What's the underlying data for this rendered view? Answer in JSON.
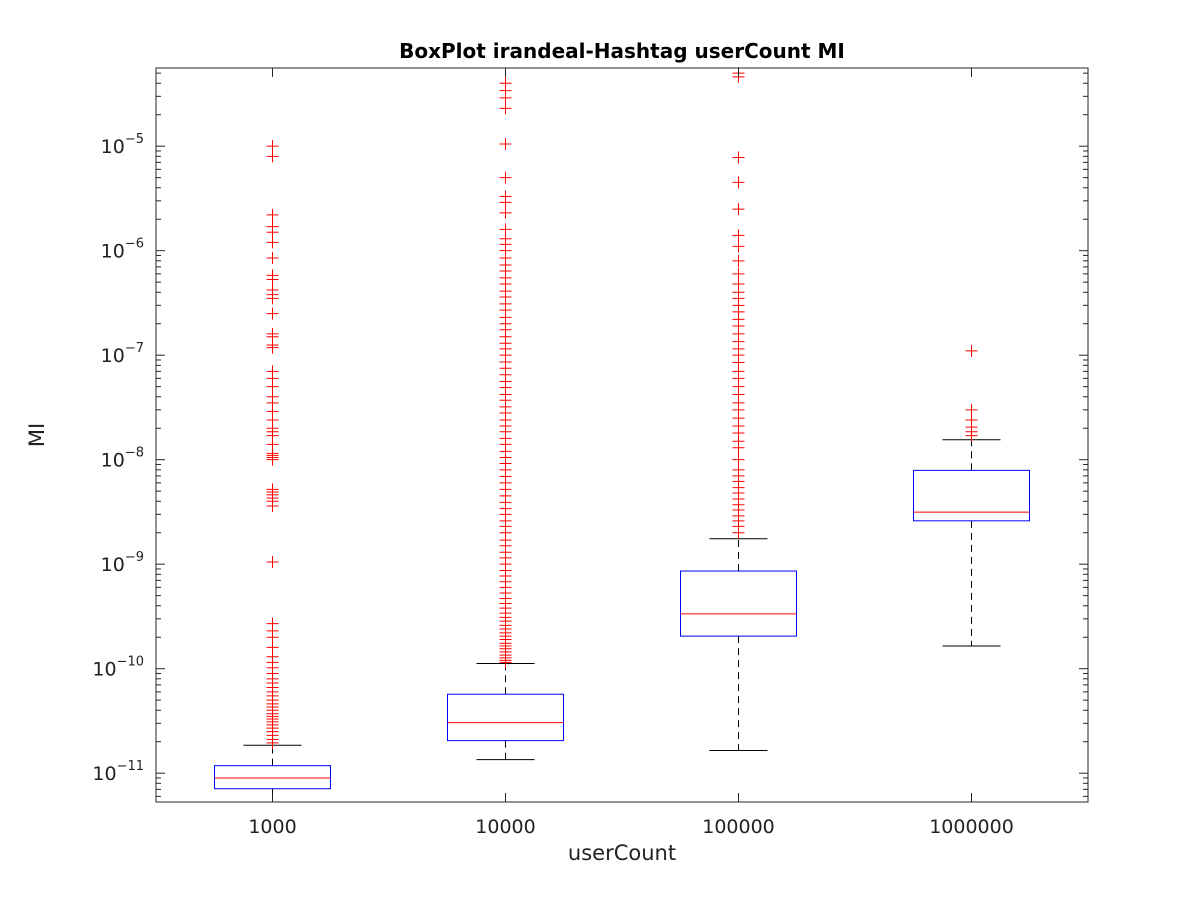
{
  "chart_data": {
    "type": "boxplot",
    "title": "BoxPlot irandeal-Hashtag userCount MI",
    "xlabel": "userCount",
    "ylabel": "MI",
    "yscale": "log",
    "ylim": [
      5.3e-12,
      5.6e-05
    ],
    "yticks": [
      {
        "value": 1e-11,
        "base": "10",
        "exp": "−11"
      },
      {
        "value": 1e-10,
        "base": "10",
        "exp": "−10"
      },
      {
        "value": 1e-09,
        "base": "10",
        "exp": "−9"
      },
      {
        "value": 1e-08,
        "base": "10",
        "exp": "−8"
      },
      {
        "value": 1e-07,
        "base": "10",
        "exp": "−7"
      },
      {
        "value": 1e-06,
        "base": "10",
        "exp": "−6"
      },
      {
        "value": 1e-05,
        "base": "10",
        "exp": "−5"
      }
    ],
    "categories": [
      "1000",
      "10000",
      "100000",
      "1000000"
    ],
    "grid": false,
    "colors": {
      "box": "#0000ff",
      "median": "#ff0000",
      "whisker": "#000000",
      "outlier": "#ff0000",
      "axis": "#262626"
    },
    "boxes": [
      {
        "category": "1000",
        "whisker_low": 5.3e-12,
        "q1": 7.1e-12,
        "median": 9e-12,
        "q3": 1.18e-11,
        "whisker_high": 1.85e-11,
        "outliers": [
          1.95e-11,
          2.1e-11,
          2.3e-11,
          2.5e-11,
          2.7e-11,
          2.9e-11,
          3.1e-11,
          3.3e-11,
          3.5e-11,
          3.7e-11,
          4e-11,
          4.3e-11,
          4.6e-11,
          5e-11,
          5.5e-11,
          6e-11,
          6.6e-11,
          7.3e-11,
          8e-11,
          9e-11,
          1.02e-10,
          1.15e-10,
          1.3e-10,
          1.6e-10,
          2e-10,
          2.3e-10,
          2.7e-10,
          1.05e-09,
          3.6e-09,
          4e-09,
          4.3e-09,
          4.6e-09,
          4.9e-09,
          5.2e-09,
          1e-08,
          1.05e-08,
          1.1e-08,
          1.15e-08,
          1.4e-08,
          1.7e-08,
          1.85e-08,
          2e-08,
          2.4e-08,
          2.9e-08,
          3.5e-08,
          4e-08,
          5e-08,
          6e-08,
          7e-08,
          1.18e-07,
          1.25e-07,
          1.5e-07,
          1.6e-07,
          2.5e-07,
          3.5e-07,
          3.8e-07,
          4.2e-07,
          5.3e-07,
          5.8e-07,
          8.5e-07,
          1.2e-06,
          1.5e-06,
          1.7e-06,
          2.2e-06,
          8e-06,
          1e-05
        ]
      },
      {
        "category": "10000",
        "whisker_low": 1.35e-11,
        "q1": 2.05e-11,
        "median": 3.05e-11,
        "q3": 5.7e-11,
        "whisker_high": 1.12e-10,
        "outliers": [
          1.15e-10,
          1.2e-10,
          1.27e-10,
          1.35e-10,
          1.45e-10,
          1.55e-10,
          1.65e-10,
          1.75e-10,
          1.9e-10,
          2.05e-10,
          2.2e-10,
          2.4e-10,
          2.6e-10,
          2.85e-10,
          3.1e-10,
          3.4e-10,
          3.8e-10,
          4.2e-10,
          4.7e-10,
          5.3e-10,
          6e-10,
          6.8e-10,
          7.7e-10,
          8.7e-10,
          1e-09,
          1.15e-09,
          1.3e-09,
          1.5e-09,
          1.7e-09,
          2e-09,
          2.3e-09,
          2.6e-09,
          3e-09,
          3.4e-09,
          3.9e-09,
          4.5e-09,
          5.2e-09,
          6e-09,
          6.9e-09,
          8e-09,
          9.2e-09,
          1.05e-08,
          1.2e-08,
          1.4e-08,
          1.6e-08,
          1.85e-08,
          2.1e-08,
          2.4e-08,
          2.8e-08,
          3.2e-08,
          3.7e-08,
          4.2e-08,
          4.9e-08,
          5.6e-08,
          6.5e-08,
          7.5e-08,
          8.6e-08,
          1e-07,
          1.15e-07,
          1.3e-07,
          1.5e-07,
          1.75e-07,
          2e-07,
          2.3e-07,
          2.7e-07,
          3.1e-07,
          3.6e-07,
          4.1e-07,
          4.8e-07,
          5.5e-07,
          6.4e-07,
          7.3e-07,
          8.5e-07,
          1e-06,
          1.15e-06,
          1.3e-06,
          1.6e-06,
          2.3e-06,
          2.9e-06,
          3.3e-06,
          5e-06,
          1.05e-05,
          2.3e-05,
          2.9e-05,
          3.4e-05,
          4e-05
        ]
      },
      {
        "category": "100000",
        "whisker_low": 1.65e-11,
        "q1": 2.05e-10,
        "median": 3.35e-10,
        "q3": 8.6e-10,
        "whisker_high": 1.75e-09,
        "outliers": [
          2e-09,
          2.3e-09,
          2.6e-09,
          2.9e-09,
          3.3e-09,
          3.7e-09,
          4.2e-09,
          4.8e-09,
          5.4e-09,
          6.2e-09,
          7e-09,
          8e-09,
          1e-08,
          1.3e-08,
          1.5e-08,
          1.8e-08,
          2.1e-08,
          2.5e-08,
          3e-08,
          3.5e-08,
          4.2e-08,
          5e-08,
          6e-08,
          7e-08,
          8.5e-08,
          1e-07,
          1.15e-07,
          1.35e-07,
          1.6e-07,
          1.9e-07,
          2.2e-07,
          2.6e-07,
          3e-07,
          3.5e-07,
          4e-07,
          4.8e-07,
          6e-07,
          8e-07,
          1.1e-06,
          1.4e-06,
          2.5e-06,
          4.5e-06,
          7.8e-06,
          4.6e-05,
          5e-05
        ]
      },
      {
        "category": "1000000",
        "whisker_low": 1.65e-10,
        "q1": 2.6e-09,
        "median": 3.15e-09,
        "q3": 7.9e-09,
        "whisker_high": 1.55e-08,
        "outliers": [
          1.7e-08,
          1.85e-08,
          2.05e-08,
          2.4e-08,
          3e-08,
          1.1e-07
        ]
      }
    ]
  }
}
